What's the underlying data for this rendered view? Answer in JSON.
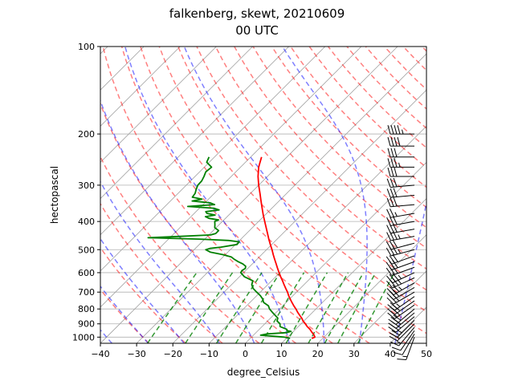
{
  "chart_data": {
    "type": "skew-t",
    "title": [
      "falkenberg, skewt, 20210609",
      "00 UTC"
    ],
    "xlabel": "degree_Celsius",
    "ylabel": "hectopascal",
    "xlim": [
      -40,
      50
    ],
    "ylim_hpa": [
      1050,
      100
    ],
    "y_scale": "log",
    "x_ticks": [
      -40,
      -30,
      -20,
      -10,
      0,
      10,
      20,
      30,
      40,
      50
    ],
    "y_ticks": [
      100,
      200,
      300,
      400,
      500,
      600,
      700,
      800,
      900,
      1000
    ],
    "grid": true,
    "colors": {
      "temperature": "#ff0000",
      "dewpoint": "#008000",
      "dry_adiabats": "#ff0000",
      "moist_adiabats": "#0000ff",
      "mixing_ratio": "#008000",
      "isotherms": "#808080",
      "wind_barbs": "#000000"
    },
    "temperature_profile": {
      "pressure": [
        1010,
        1000,
        980,
        960,
        940,
        920,
        900,
        880,
        860,
        840,
        820,
        800,
        780,
        760,
        740,
        720,
        700,
        680,
        660,
        640,
        620,
        600,
        580,
        560,
        540,
        520,
        500,
        480,
        460,
        440,
        420,
        400,
        380,
        360,
        340,
        320,
        300,
        280,
        260,
        250,
        240
      ],
      "temperature": [
        17,
        17.5,
        16.5,
        15.2,
        14,
        12.5,
        11.2,
        9.8,
        8.6,
        7.2,
        5.8,
        4.5,
        3.0,
        1.6,
        0.2,
        -1.2,
        -2.5,
        -4.0,
        -5.5,
        -7.0,
        -8.6,
        -10.2,
        -11.8,
        -13.4,
        -15.1,
        -16.8,
        -18.5,
        -20.4,
        -22.3,
        -24.2,
        -26.2,
        -28.3,
        -30.5,
        -32.7,
        -35.0,
        -37.4,
        -40.0,
        -42.6,
        -45.0,
        -46.0,
        -47.0
      ]
    },
    "dewpoint_profile": {
      "pressure": [
        1010,
        1000,
        985,
        975,
        965,
        955,
        950,
        940,
        920,
        900,
        880,
        860,
        840,
        820,
        800,
        780,
        760,
        740,
        720,
        700,
        680,
        660,
        640,
        620,
        600,
        590,
        580,
        570,
        560,
        550,
        540,
        530,
        520,
        510,
        500,
        495,
        490,
        480,
        470,
        465,
        460,
        455,
        450,
        445,
        440,
        430,
        420,
        410,
        400,
        395,
        390,
        385,
        380,
        375,
        370,
        365,
        360,
        355,
        350,
        345,
        340,
        335,
        330,
        320,
        310,
        300,
        290,
        280,
        270,
        260,
        250,
        240
      ],
      "dewpoint": [
        11,
        9,
        2,
        3.5,
        8.5,
        9.3,
        8.0,
        7.6,
        5.0,
        4.2,
        2.6,
        2.0,
        0.4,
        -1.2,
        -2.8,
        -4.0,
        -6.2,
        -7.4,
        -9.0,
        -11.0,
        -13.0,
        -14.4,
        -15.2,
        -18.6,
        -20.8,
        -21.0,
        -20.7,
        -21.2,
        -22.6,
        -24.5,
        -26.2,
        -27.7,
        -30.8,
        -34.8,
        -36.8,
        -36.0,
        -33.3,
        -29.6,
        -29.7,
        -33.0,
        -41.6,
        -56.0,
        -47.5,
        -39.5,
        -38.5,
        -38.5,
        -40.4,
        -41.2,
        -42.1,
        -41.5,
        -44.6,
        -46.0,
        -43.8,
        -46.5,
        -47.3,
        -44.1,
        -46.0,
        -53.7,
        -46.8,
        -48.5,
        -54.0,
        -51.8,
        -55.0,
        -55.3,
        -56.1,
        -56.8,
        -56.9,
        -57.5,
        -58.3,
        -58.0,
        -60.7,
        -61.5
      ]
    },
    "wind_barbs": {
      "pressure": [
        1000,
        975,
        950,
        925,
        900,
        875,
        850,
        825,
        800,
        775,
        750,
        725,
        700,
        675,
        650,
        625,
        600,
        575,
        550,
        525,
        500,
        475,
        450,
        425,
        400,
        375,
        350,
        325,
        300,
        280,
        260,
        240,
        220,
        200
      ],
      "speed_kt": [
        15,
        10,
        10,
        15,
        20,
        25,
        25,
        30,
        30,
        30,
        30,
        25,
        30,
        30,
        35,
        35,
        35,
        30,
        30,
        30,
        35,
        30,
        35,
        30,
        30,
        25,
        30,
        30,
        30,
        30,
        35,
        30,
        40,
        45
      ],
      "direction_deg": [
        200,
        210,
        215,
        220,
        225,
        225,
        230,
        230,
        230,
        235,
        235,
        235,
        240,
        240,
        240,
        245,
        245,
        250,
        250,
        250,
        255,
        255,
        260,
        260,
        260,
        260,
        265,
        265,
        265,
        270,
        270,
        270,
        270,
        270
      ]
    }
  }
}
